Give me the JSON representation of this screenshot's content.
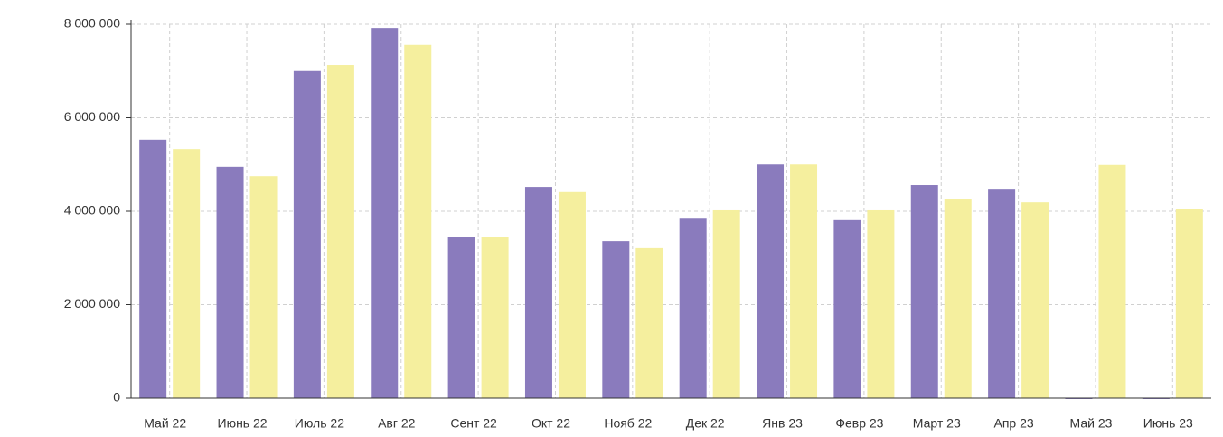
{
  "chart_data": {
    "type": "bar",
    "categories": [
      "Май 22",
      "Июнь 22",
      "Июль 22",
      "Авг 22",
      "Сент 22",
      "Окт 22",
      "Нояб 22",
      "Дек 22",
      "Янв 23",
      "Февр 23",
      "Март 23",
      "Апр 23",
      "Май 23",
      "Июнь 23"
    ],
    "series": [
      {
        "color": "#8a7bbd",
        "values": [
          5530000,
          4950000,
          7000000,
          7920000,
          3440000,
          4520000,
          3360000,
          3860000,
          5000000,
          3810000,
          4560000,
          4480000,
          0,
          0
        ]
      },
      {
        "color": "#f5ef9e",
        "values": [
          5330000,
          4750000,
          7130000,
          7560000,
          3440000,
          4410000,
          3210000,
          4020000,
          5000000,
          4020000,
          4270000,
          4190000,
          4990000,
          4040000
        ]
      }
    ],
    "ylim": [
      0,
      8000000
    ],
    "yticks": [
      0,
      {
        "value": 2000000,
        "label": "2 000 000"
      },
      {
        "value": 4000000,
        "label": "4 000 000"
      },
      {
        "value": 6000000,
        "label": "6 000 000"
      },
      {
        "value": 8000000,
        "label": "8 000 000"
      }
    ],
    "grid": true
  }
}
